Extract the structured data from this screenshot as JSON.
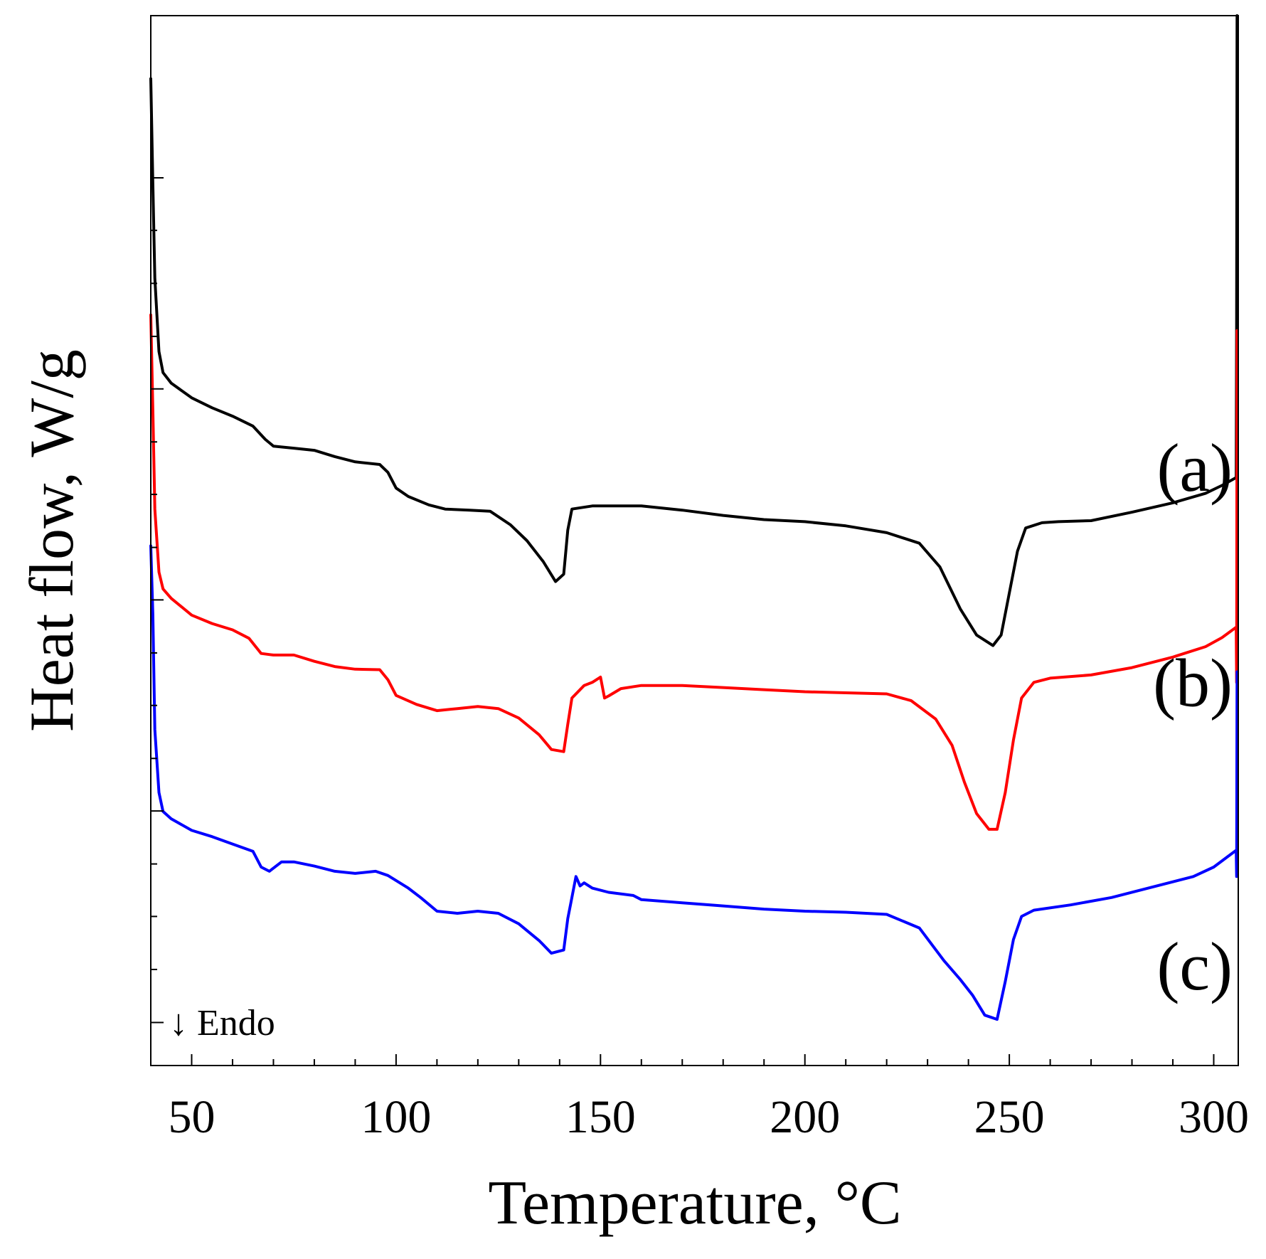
{
  "chart_data": {
    "type": "line",
    "title": "",
    "xlabel": "Temperature, °C",
    "ylabel": "Heat flow, W/g",
    "xlim": [
      40,
      306
    ],
    "ylim": [
      0,
      20
    ],
    "x_ticks_major": [
      50,
      100,
      150,
      200,
      250,
      300
    ],
    "x_tick_labels": [
      "50",
      "100",
      "150",
      "200",
      "250",
      "300"
    ],
    "y_ticks_major": [
      0.82,
      4.85,
      8.87,
      12.89,
      16.91
    ],
    "y_ticks_minor": [
      1.83,
      2.84,
      3.84,
      5.85,
      6.86,
      7.86,
      9.87,
      10.88,
      11.88,
      13.89,
      14.9,
      15.91
    ],
    "annotation": "↓ Endo",
    "grid": false,
    "series": [
      {
        "name": "(a)",
        "color": "#000000",
        "points": [
          [
            40,
            18.8
          ],
          [
            40.5,
            16.8
          ],
          [
            41,
            15.0
          ],
          [
            42,
            13.6
          ],
          [
            43,
            13.2
          ],
          [
            45,
            13.0
          ],
          [
            50,
            12.72
          ],
          [
            55,
            12.53
          ],
          [
            60,
            12.37
          ],
          [
            65,
            12.18
          ],
          [
            68,
            11.93
          ],
          [
            70,
            11.8
          ],
          [
            75,
            11.76
          ],
          [
            80,
            11.72
          ],
          [
            85,
            11.6
          ],
          [
            90,
            11.5
          ],
          [
            96,
            11.45
          ],
          [
            98,
            11.3
          ],
          [
            100,
            11.0
          ],
          [
            103,
            10.84
          ],
          [
            108,
            10.68
          ],
          [
            112,
            10.6
          ],
          [
            118,
            10.58
          ],
          [
            123,
            10.56
          ],
          [
            128,
            10.3
          ],
          [
            132,
            10.0
          ],
          [
            136,
            9.6
          ],
          [
            139,
            9.22
          ],
          [
            141,
            9.36
          ],
          [
            142,
            10.2
          ],
          [
            143,
            10.6
          ],
          [
            148,
            10.66
          ],
          [
            160,
            10.66
          ],
          [
            170,
            10.58
          ],
          [
            180,
            10.48
          ],
          [
            190,
            10.4
          ],
          [
            200,
            10.36
          ],
          [
            210,
            10.28
          ],
          [
            220,
            10.15
          ],
          [
            228,
            9.95
          ],
          [
            233,
            9.5
          ],
          [
            238,
            8.7
          ],
          [
            242,
            8.2
          ],
          [
            246,
            8.0
          ],
          [
            248,
            8.2
          ],
          [
            250,
            9.0
          ],
          [
            252,
            9.8
          ],
          [
            254,
            10.24
          ],
          [
            258,
            10.34
          ],
          [
            262,
            10.36
          ],
          [
            270,
            10.38
          ],
          [
            280,
            10.54
          ],
          [
            290,
            10.72
          ],
          [
            298,
            10.9
          ],
          [
            302,
            11.05
          ],
          [
            305.5,
            11.2
          ],
          [
            305.6,
            14.3
          ],
          [
            305.7,
            20.0
          ]
        ]
      },
      {
        "name": "(b)",
        "color": "#ff0000",
        "points": [
          [
            40,
            14.3
          ],
          [
            40.5,
            12.5
          ],
          [
            41,
            10.6
          ],
          [
            42,
            9.4
          ],
          [
            43,
            9.08
          ],
          [
            45,
            8.9
          ],
          [
            50,
            8.58
          ],
          [
            55,
            8.42
          ],
          [
            60,
            8.3
          ],
          [
            64,
            8.14
          ],
          [
            67,
            7.85
          ],
          [
            70,
            7.82
          ],
          [
            75,
            7.82
          ],
          [
            80,
            7.7
          ],
          [
            85,
            7.6
          ],
          [
            90,
            7.55
          ],
          [
            96,
            7.54
          ],
          [
            98,
            7.35
          ],
          [
            100,
            7.05
          ],
          [
            105,
            6.88
          ],
          [
            110,
            6.76
          ],
          [
            115,
            6.8
          ],
          [
            120,
            6.84
          ],
          [
            125,
            6.8
          ],
          [
            130,
            6.62
          ],
          [
            135,
            6.3
          ],
          [
            138,
            6.02
          ],
          [
            141,
            5.98
          ],
          [
            142,
            6.5
          ],
          [
            143,
            7.0
          ],
          [
            146,
            7.24
          ],
          [
            148,
            7.3
          ],
          [
            150,
            7.4
          ],
          [
            151,
            7.0
          ],
          [
            152,
            7.04
          ],
          [
            155,
            7.18
          ],
          [
            160,
            7.24
          ],
          [
            170,
            7.24
          ],
          [
            180,
            7.2
          ],
          [
            190,
            7.16
          ],
          [
            200,
            7.12
          ],
          [
            210,
            7.1
          ],
          [
            220,
            7.08
          ],
          [
            226,
            6.95
          ],
          [
            232,
            6.6
          ],
          [
            236,
            6.1
          ],
          [
            239,
            5.4
          ],
          [
            242,
            4.8
          ],
          [
            245,
            4.5
          ],
          [
            247,
            4.5
          ],
          [
            249,
            5.2
          ],
          [
            251,
            6.2
          ],
          [
            253,
            7.0
          ],
          [
            256,
            7.3
          ],
          [
            260,
            7.38
          ],
          [
            270,
            7.44
          ],
          [
            280,
            7.58
          ],
          [
            290,
            7.78
          ],
          [
            298,
            7.98
          ],
          [
            302,
            8.15
          ],
          [
            305.5,
            8.35
          ],
          [
            305.6,
            7.3
          ],
          [
            305.7,
            14.0
          ]
        ]
      },
      {
        "name": "(c)",
        "color": "#0000ff",
        "points": [
          [
            40,
            9.9
          ],
          [
            40.5,
            8.6
          ],
          [
            41,
            6.4
          ],
          [
            42,
            5.2
          ],
          [
            43,
            4.84
          ],
          [
            45,
            4.7
          ],
          [
            50,
            4.48
          ],
          [
            55,
            4.36
          ],
          [
            60,
            4.22
          ],
          [
            65,
            4.08
          ],
          [
            67,
            3.78
          ],
          [
            69,
            3.7
          ],
          [
            72,
            3.88
          ],
          [
            75,
            3.88
          ],
          [
            80,
            3.8
          ],
          [
            85,
            3.7
          ],
          [
            90,
            3.66
          ],
          [
            95,
            3.7
          ],
          [
            98,
            3.62
          ],
          [
            103,
            3.38
          ],
          [
            106,
            3.2
          ],
          [
            110,
            2.94
          ],
          [
            115,
            2.9
          ],
          [
            120,
            2.94
          ],
          [
            125,
            2.9
          ],
          [
            130,
            2.7
          ],
          [
            135,
            2.38
          ],
          [
            138,
            2.14
          ],
          [
            141,
            2.2
          ],
          [
            142,
            2.8
          ],
          [
            143,
            3.2
          ],
          [
            144,
            3.6
          ],
          [
            145,
            3.42
          ],
          [
            146,
            3.48
          ],
          [
            148,
            3.38
          ],
          [
            152,
            3.3
          ],
          [
            158,
            3.24
          ],
          [
            160,
            3.16
          ],
          [
            170,
            3.1
          ],
          [
            180,
            3.04
          ],
          [
            190,
            2.98
          ],
          [
            200,
            2.94
          ],
          [
            210,
            2.92
          ],
          [
            220,
            2.88
          ],
          [
            228,
            2.62
          ],
          [
            234,
            2.0
          ],
          [
            238,
            1.64
          ],
          [
            241,
            1.34
          ],
          [
            244,
            0.96
          ],
          [
            247,
            0.88
          ],
          [
            249,
            1.6
          ],
          [
            251,
            2.4
          ],
          [
            253,
            2.84
          ],
          [
            256,
            2.96
          ],
          [
            265,
            3.06
          ],
          [
            275,
            3.2
          ],
          [
            285,
            3.4
          ],
          [
            295,
            3.6
          ],
          [
            300,
            3.78
          ],
          [
            305.5,
            4.1
          ],
          [
            305.6,
            3.6
          ],
          [
            305.7,
            7.5
          ]
        ]
      }
    ],
    "series_labels": [
      {
        "text": "(a)",
        "y": 10.95
      },
      {
        "text": "(b)",
        "y": 6.85
      },
      {
        "text": "(c)",
        "y": 1.45
      }
    ]
  }
}
